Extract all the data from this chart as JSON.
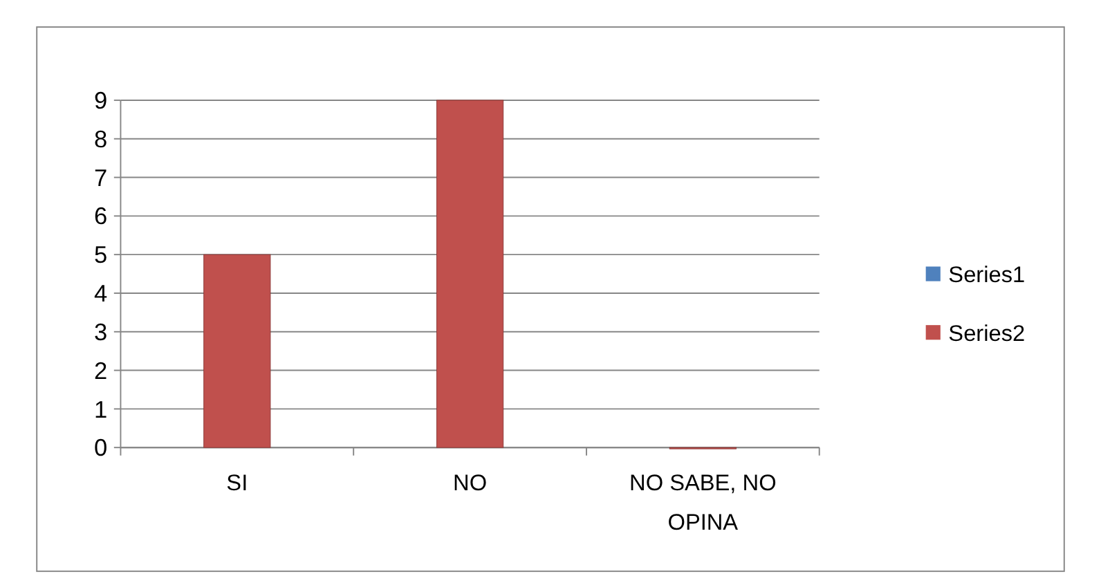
{
  "chart_data": {
    "type": "bar",
    "categories": [
      "SI",
      "NO",
      "NO SABE, NO OPINA"
    ],
    "series": [
      {
        "name": "Series1",
        "color": "#4f81bd",
        "values": [
          null,
          null,
          null
        ]
      },
      {
        "name": "Series2",
        "color": "#c0504d",
        "values": [
          5,
          9,
          0
        ]
      }
    ],
    "ylim": [
      0,
      9
    ],
    "yticks": [
      0,
      1,
      2,
      3,
      4,
      5,
      6,
      7,
      8,
      9
    ],
    "grid": "y",
    "legend": "right"
  }
}
